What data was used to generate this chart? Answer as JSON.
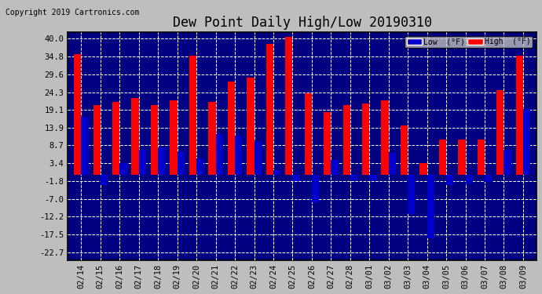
{
  "title": "Dew Point Daily High/Low 20190310",
  "copyright": "Copyright 2019 Cartronics.com",
  "dates": [
    "02/14",
    "02/15",
    "02/16",
    "02/17",
    "02/18",
    "02/19",
    "02/20",
    "02/21",
    "02/22",
    "02/23",
    "02/24",
    "02/25",
    "02/26",
    "02/27",
    "02/28",
    "03/01",
    "03/02",
    "03/03",
    "03/04",
    "03/05",
    "03/06",
    "03/07",
    "03/08",
    "03/09"
  ],
  "high": [
    35.5,
    20.5,
    21.5,
    22.5,
    20.5,
    22.0,
    35.0,
    21.5,
    27.5,
    28.5,
    38.5,
    40.5,
    24.0,
    18.5,
    20.5,
    21.0,
    22.0,
    14.5,
    3.5,
    10.5,
    10.5,
    10.5,
    25.0,
    35.0
  ],
  "low": [
    17.0,
    -3.0,
    3.5,
    7.5,
    8.0,
    7.0,
    5.0,
    12.0,
    11.5,
    10.0,
    1.5,
    -1.8,
    -8.0,
    4.5,
    -1.5,
    -1.5,
    6.5,
    -11.5,
    -18.5,
    -3.0,
    -2.5,
    -2.0,
    7.5,
    19.5
  ],
  "high_color": "#ff0000",
  "low_color": "#0000cc",
  "bg_color": "#bebebe",
  "plot_bg_color": "#000080",
  "grid_color": "#ffffff",
  "border_color": "#000000",
  "yticks": [
    -22.7,
    -17.5,
    -12.2,
    -7.0,
    -1.8,
    3.4,
    8.7,
    13.9,
    19.1,
    24.3,
    29.6,
    34.8,
    40.0
  ],
  "ylim": [
    -25.0,
    42.0
  ],
  "bar_width": 0.38,
  "title_fontsize": 12,
  "tick_fontsize": 7.5,
  "copyright_fontsize": 7
}
